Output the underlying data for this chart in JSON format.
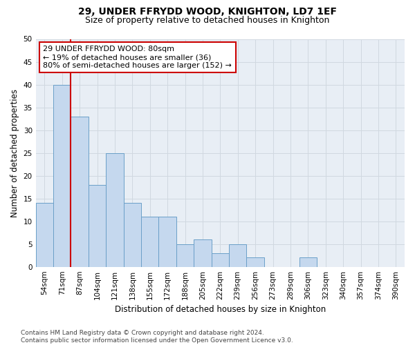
{
  "title": "29, UNDER FFRYDD WOOD, KNIGHTON, LD7 1EF",
  "subtitle": "Size of property relative to detached houses in Knighton",
  "xlabel": "Distribution of detached houses by size in Knighton",
  "ylabel": "Number of detached properties",
  "categories": [
    "54sqm",
    "71sqm",
    "87sqm",
    "104sqm",
    "121sqm",
    "138sqm",
    "155sqm",
    "172sqm",
    "188sqm",
    "205sqm",
    "222sqm",
    "239sqm",
    "256sqm",
    "273sqm",
    "289sqm",
    "306sqm",
    "323sqm",
    "340sqm",
    "357sqm",
    "374sqm",
    "390sqm"
  ],
  "values": [
    14,
    40,
    33,
    18,
    25,
    14,
    11,
    11,
    5,
    6,
    3,
    5,
    2,
    0,
    0,
    2,
    0,
    0,
    0,
    0,
    0
  ],
  "bar_color": "#c5d8ee",
  "bar_edge_color": "#6a9fc8",
  "marker_line_color": "#cc0000",
  "annotation_text": "29 UNDER FFRYDD WOOD: 80sqm\n← 19% of detached houses are smaller (36)\n80% of semi-detached houses are larger (152) →",
  "annotation_box_color": "#ffffff",
  "annotation_box_edge": "#cc0000",
  "ylim": [
    0,
    50
  ],
  "yticks": [
    0,
    5,
    10,
    15,
    20,
    25,
    30,
    35,
    40,
    45,
    50
  ],
  "grid_color": "#d0d8e0",
  "bg_color": "#e8eef5",
  "footer": "Contains HM Land Registry data © Crown copyright and database right 2024.\nContains public sector information licensed under the Open Government Licence v3.0.",
  "title_fontsize": 10,
  "subtitle_fontsize": 9,
  "axis_label_fontsize": 8.5,
  "tick_fontsize": 7.5,
  "annotation_fontsize": 8,
  "footer_fontsize": 6.5
}
